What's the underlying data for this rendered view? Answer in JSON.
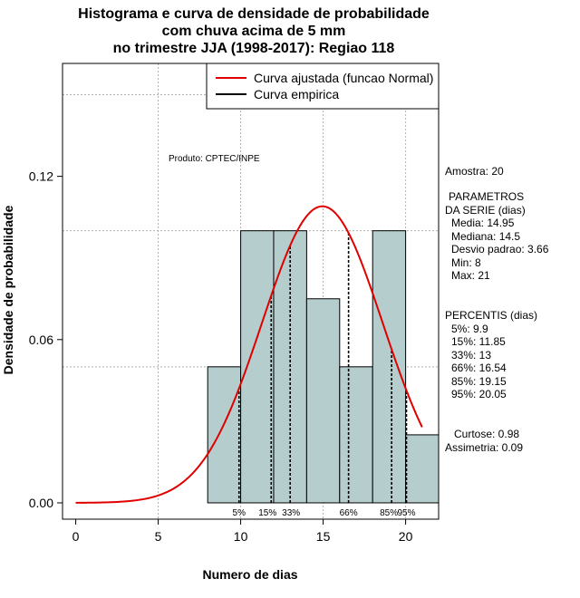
{
  "title_lines": [
    "Histograma e curva de densidade de probabilidade",
    "com chuva acima de 5 mm",
    "no trimestre JJA (1998-2017): Regiao 118"
  ],
  "credit": "Produto: CPTEC/INPE",
  "legend": {
    "fitted": "Curva ajustada (funcao Normal)",
    "empirical": "Curva empirica"
  },
  "stats": {
    "sample": "Amostra: 20",
    "params_header": [
      "PARAMETROS",
      "DA SERIE (dias)"
    ],
    "params": [
      "Media: 14.95",
      "Mediana: 14.5",
      "Desvio padrao: 3.66",
      "Min: 8",
      "Max: 21"
    ],
    "percentis_header": "PERCENTIS (dias)",
    "percentis": [
      "5%: 9.9",
      "15%: 11.85",
      "33%: 13",
      "66%: 16.54",
      "85%: 19.15",
      "95%: 20.05"
    ],
    "shape": [
      "Curtose: 0.98",
      "Assimetria: 0.09"
    ]
  },
  "colors": {
    "bar": "#b5cdcd",
    "curve": "#e00000",
    "grid": "#b0b0b0"
  },
  "chart_data": {
    "type": "bar",
    "xlabel": "Numero de dias",
    "ylabel": "Densidade de probabilidade",
    "xlim": [
      -0.8,
      22
    ],
    "ylim": [
      -0.006,
      0.1615
    ],
    "xticks": [
      0,
      5,
      10,
      15,
      20
    ],
    "yticks": [
      0.0,
      0.06,
      0.12
    ],
    "ytick_labels": [
      "0.00",
      "0.06",
      "0.12"
    ],
    "grid": true,
    "hgrid": [
      0.05,
      0.1,
      0.15
    ],
    "vgrid": [
      5,
      10,
      15,
      20
    ],
    "bins": [
      {
        "x0": 8,
        "x1": 10,
        "density": 0.05
      },
      {
        "x0": 10,
        "x1": 12,
        "density": 0.1
      },
      {
        "x0": 12,
        "x1": 14,
        "density": 0.1
      },
      {
        "x0": 14,
        "x1": 16,
        "density": 0.075
      },
      {
        "x0": 16,
        "x1": 18,
        "density": 0.05
      },
      {
        "x0": 18,
        "x1": 20,
        "density": 0.1
      },
      {
        "x0": 20,
        "x1": 22,
        "density": 0.025
      }
    ],
    "normal_curve": {
      "mean": 14.95,
      "sd": 3.66,
      "x_from": 0,
      "x_to": 21
    },
    "percentiles": [
      {
        "label": "5%",
        "value": 9.9
      },
      {
        "label": "15%",
        "value": 11.85
      },
      {
        "label": "33%",
        "value": 13
      },
      {
        "label": "66%",
        "value": 16.54
      },
      {
        "label": "85%",
        "value": 19.15
      },
      {
        "label": "95%",
        "value": 20.05
      }
    ]
  }
}
